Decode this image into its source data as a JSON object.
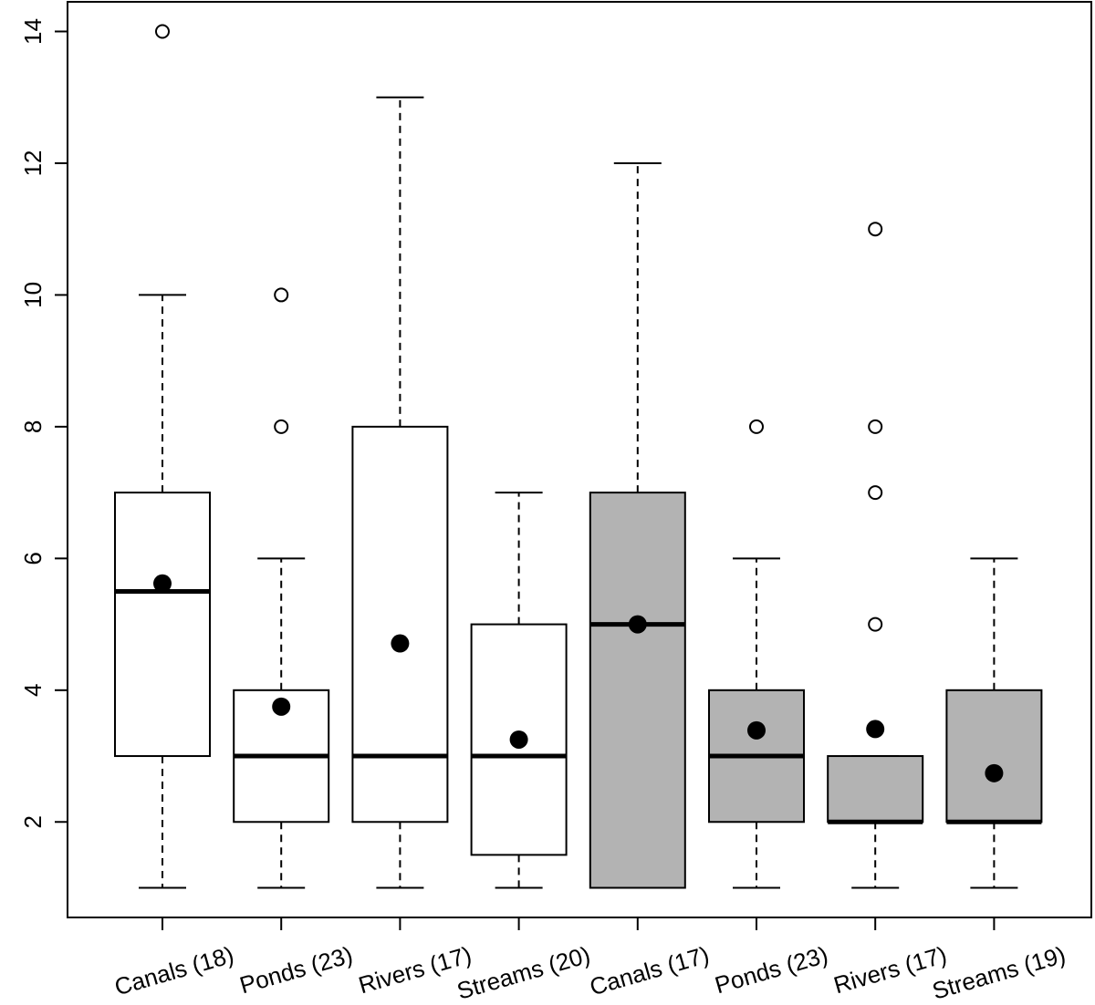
{
  "chart_data": {
    "type": "box",
    "title": "",
    "xlabel": "",
    "ylabel": "",
    "ylim": [
      0.55,
      14.45
    ],
    "yticks": [
      2,
      4,
      6,
      8,
      10,
      12,
      14
    ],
    "ytick_labels": [
      "2",
      "4",
      "6",
      "8",
      "10",
      "12",
      "14"
    ],
    "categories": [
      "Canals (18)",
      "Ponds (23)",
      "Rivers (17)",
      "Streams (20)",
      "Canals (17)",
      "Ponds (23)",
      "Rivers (17)",
      "Streams (19)"
    ],
    "boxes": [
      {
        "label": "Canals (18)",
        "whisker_low": 1,
        "q1": 3,
        "median": 5.5,
        "q3": 7,
        "whisker_high": 10,
        "mean": 5.62,
        "outliers": [
          14
        ],
        "fill": "#ffffff"
      },
      {
        "label": "Ponds (23)",
        "whisker_low": 1,
        "q1": 2,
        "median": 3,
        "q3": 4,
        "whisker_high": 6,
        "mean": 3.75,
        "outliers": [
          8,
          10
        ],
        "fill": "#ffffff"
      },
      {
        "label": "Rivers (17)",
        "whisker_low": 1,
        "q1": 2,
        "median": 3,
        "q3": 8,
        "whisker_high": 13,
        "mean": 4.71,
        "outliers": [],
        "fill": "#ffffff"
      },
      {
        "label": "Streams (20)",
        "whisker_low": 1,
        "q1": 1.5,
        "median": 3,
        "q3": 5,
        "whisker_high": 7,
        "mean": 3.25,
        "outliers": [],
        "fill": "#ffffff"
      },
      {
        "label": "Canals (17)",
        "whisker_low": 1,
        "q1": 1,
        "median": 5,
        "q3": 7,
        "whisker_high": 12,
        "mean": 5.0,
        "outliers": [],
        "fill": "#b3b3b3"
      },
      {
        "label": "Ponds (23)",
        "whisker_low": 1,
        "q1": 2,
        "median": 3,
        "q3": 4,
        "whisker_high": 6,
        "mean": 3.39,
        "outliers": [
          8
        ],
        "fill": "#b3b3b3"
      },
      {
        "label": "Rivers (17)",
        "whisker_low": 1,
        "q1": 2,
        "median": 2,
        "q3": 3,
        "whisker_high": 3,
        "mean": 3.41,
        "outliers": [
          5,
          7,
          8,
          11
        ],
        "fill": "#b3b3b3"
      },
      {
        "label": "Streams (19)",
        "whisker_low": 1,
        "q1": 2,
        "median": 2,
        "q3": 4,
        "whisker_high": 6,
        "mean": 2.74,
        "outliers": [],
        "fill": "#b3b3b3"
      }
    ],
    "grid": false,
    "legend": "none",
    "colors": {
      "white_box": "#ffffff",
      "gray_box": "#b3b3b3",
      "line": "#000000",
      "mean_marker": "#000000"
    }
  }
}
